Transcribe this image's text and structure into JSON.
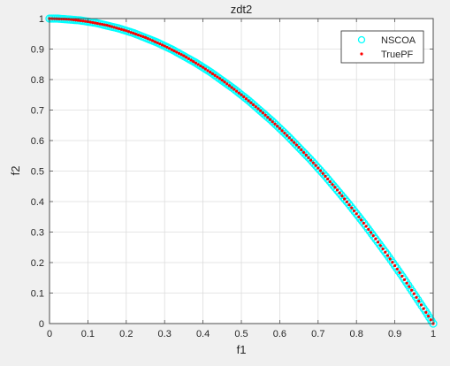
{
  "colors": {
    "figure_bg": "#f0f0f0",
    "axes_bg": "#ffffff",
    "grid": "#dcdcdc",
    "axis_line": "#4d4d4d",
    "text": "#262626",
    "nscoa": "#00ffff",
    "truepf": "#ff0000"
  },
  "chart_data": {
    "type": "scatter",
    "title": "zdt2",
    "xlabel": "f1",
    "ylabel": "f2",
    "xlim": [
      0,
      1
    ],
    "ylim": [
      0,
      1
    ],
    "xticks": [
      "0",
      "0.1",
      "0.2",
      "0.3",
      "0.4",
      "0.5",
      "0.6",
      "0.7",
      "0.8",
      "0.9",
      "1"
    ],
    "yticks": [
      "0",
      "0.1",
      "0.2",
      "0.3",
      "0.4",
      "0.5",
      "0.6",
      "0.7",
      "0.8",
      "0.9",
      "1"
    ],
    "grid": true,
    "legend_position": "top-right",
    "series": [
      {
        "name": "NSCOA",
        "marker": "circle-open",
        "color": "#00ffff",
        "x": [
          0,
          0.02,
          0.04,
          0.06,
          0.08,
          0.1,
          0.12,
          0.14,
          0.16,
          0.18,
          0.2,
          0.22,
          0.24,
          0.26,
          0.28,
          0.3,
          0.32,
          0.34,
          0.36,
          0.38,
          0.4,
          0.42,
          0.44,
          0.46,
          0.48,
          0.5,
          0.52,
          0.54,
          0.56,
          0.58,
          0.6,
          0.62,
          0.64,
          0.66,
          0.68,
          0.7,
          0.72,
          0.74,
          0.76,
          0.78,
          0.8,
          0.82,
          0.84,
          0.86,
          0.88,
          0.9,
          0.92,
          0.94,
          0.96,
          0.98,
          1
        ],
        "y": [
          1,
          1,
          0.998,
          0.996,
          0.994,
          0.99,
          0.986,
          0.98,
          0.974,
          0.968,
          0.96,
          0.952,
          0.942,
          0.932,
          0.922,
          0.91,
          0.898,
          0.884,
          0.87,
          0.856,
          0.84,
          0.824,
          0.806,
          0.788,
          0.77,
          0.75,
          0.73,
          0.708,
          0.686,
          0.664,
          0.64,
          0.616,
          0.59,
          0.564,
          0.538,
          0.51,
          0.482,
          0.452,
          0.422,
          0.392,
          0.36,
          0.328,
          0.294,
          0.26,
          0.226,
          0.19,
          0.154,
          0.116,
          0.078,
          0.04,
          0
        ]
      },
      {
        "name": "TruePF",
        "marker": "dot",
        "color": "#ff0000",
        "x": [
          0,
          0.025,
          0.05,
          0.075,
          0.1,
          0.125,
          0.15,
          0.175,
          0.2,
          0.225,
          0.25,
          0.275,
          0.3,
          0.325,
          0.35,
          0.375,
          0.4,
          0.425,
          0.45,
          0.475,
          0.5,
          0.525,
          0.55,
          0.575,
          0.6,
          0.625,
          0.65,
          0.675,
          0.7,
          0.725,
          0.75,
          0.775,
          0.8,
          0.825,
          0.85,
          0.875,
          0.9,
          0.925,
          0.95,
          0.975,
          1
        ],
        "y": [
          1,
          0.999,
          0.998,
          0.994,
          0.99,
          0.984,
          0.978,
          0.969,
          0.96,
          0.949,
          0.938,
          0.924,
          0.91,
          0.894,
          0.878,
          0.859,
          0.84,
          0.819,
          0.798,
          0.774,
          0.75,
          0.724,
          0.698,
          0.669,
          0.64,
          0.609,
          0.578,
          0.544,
          0.51,
          0.474,
          0.438,
          0.399,
          0.36,
          0.319,
          0.278,
          0.234,
          0.19,
          0.144,
          0.098,
          0.049,
          0
        ]
      }
    ]
  }
}
